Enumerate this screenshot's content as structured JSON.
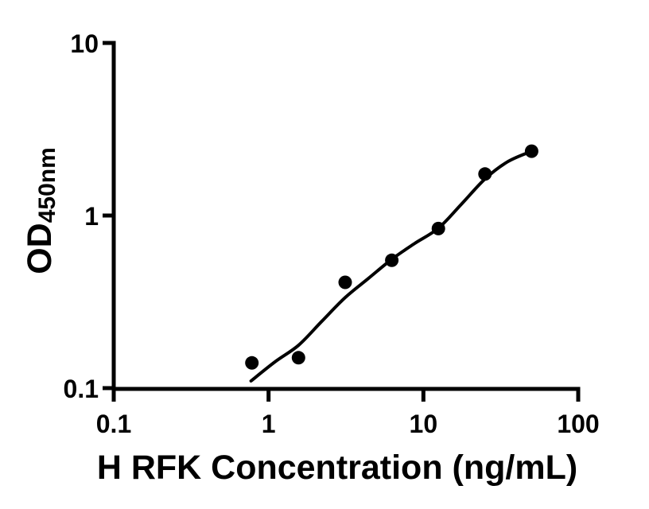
{
  "figure": {
    "background_color": "#ffffff",
    "axis_color": "#000000"
  },
  "chart_data": {
    "type": "scatter",
    "title": "",
    "xlabel": "H RFK Concentration (ng/mL)",
    "ylabel": "OD",
    "ylabel_subscript": "450nm",
    "xscale": "log",
    "yscale": "log",
    "xlim": [
      0.1,
      100
    ],
    "ylim": [
      0.1,
      10
    ],
    "grid": false,
    "legend": "none",
    "x_ticks": [
      {
        "value": 0.1,
        "label": "0.1"
      },
      {
        "value": 1,
        "label": "1"
      },
      {
        "value": 10,
        "label": "10"
      },
      {
        "value": 100,
        "label": "100"
      }
    ],
    "y_ticks": [
      {
        "value": 10,
        "label": "10"
      },
      {
        "value": 1,
        "label": "1"
      },
      {
        "value": 0.1,
        "label": "0.1"
      }
    ],
    "series": [
      {
        "name": "standard-curve-points",
        "marker_color": "#000000",
        "points": [
          {
            "x": 0.78,
            "od": 0.14
          },
          {
            "x": 1.56,
            "od": 0.15
          },
          {
            "x": 3.125,
            "od": 0.41
          },
          {
            "x": 6.25,
            "od": 0.55
          },
          {
            "x": 12.5,
            "od": 0.84
          },
          {
            "x": 25,
            "od": 1.74
          },
          {
            "x": 50,
            "od": 2.36
          }
        ]
      }
    ],
    "fit_curve": {
      "name": "four-parameter-logistic-fit",
      "line_color": "#000000",
      "samples": [
        {
          "x": 0.77,
          "od": 0.11
        },
        {
          "x": 1.1,
          "od": 0.142
        },
        {
          "x": 1.56,
          "od": 0.177
        },
        {
          "x": 2.2,
          "od": 0.243
        },
        {
          "x": 3.125,
          "od": 0.335
        },
        {
          "x": 4.4,
          "od": 0.431
        },
        {
          "x": 6.25,
          "od": 0.558
        },
        {
          "x": 8.8,
          "od": 0.69
        },
        {
          "x": 12.5,
          "od": 0.845
        },
        {
          "x": 17.7,
          "od": 1.17
        },
        {
          "x": 25,
          "od": 1.63
        },
        {
          "x": 35,
          "od": 2.05
        },
        {
          "x": 50,
          "od": 2.36
        }
      ]
    }
  }
}
